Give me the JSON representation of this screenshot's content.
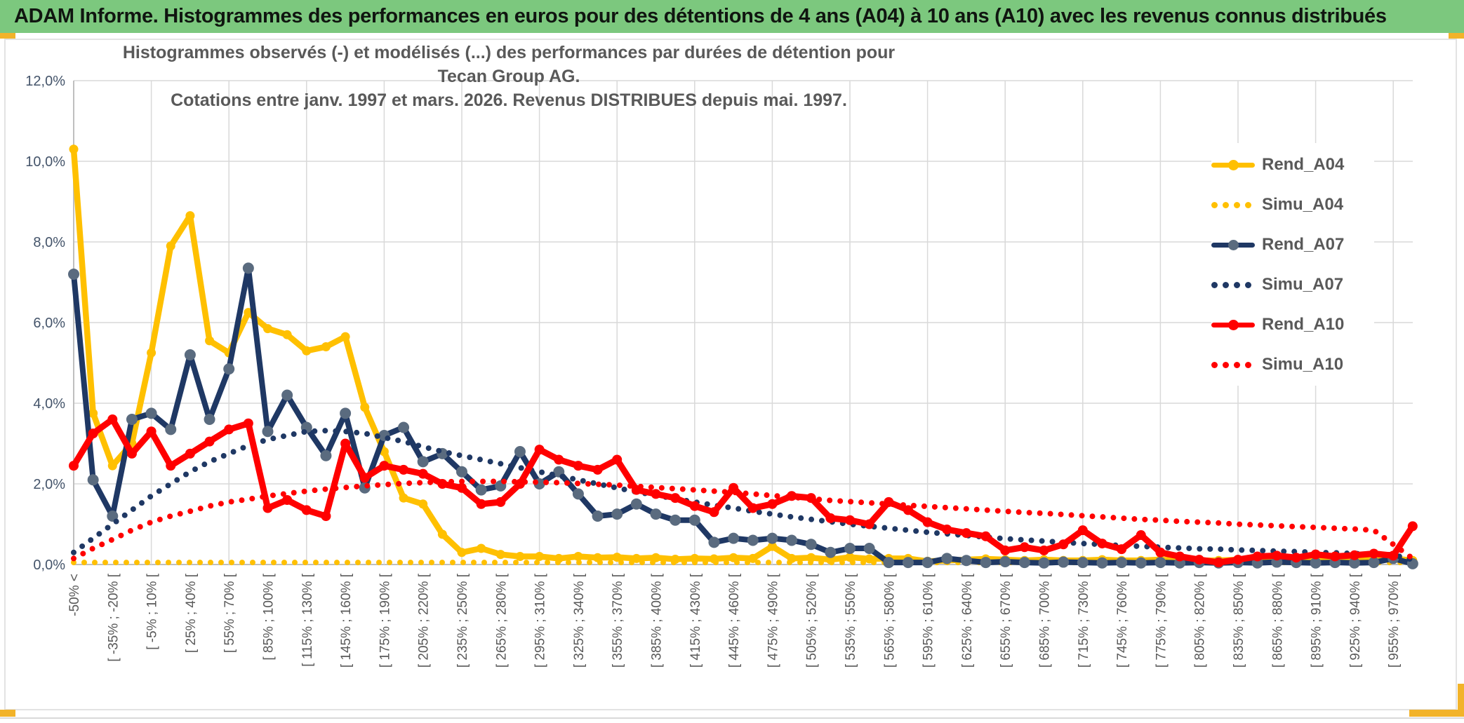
{
  "header": {
    "title": "ADAM Informe. Histogrammes des performances en euros pour des détentions de 4 ans (A04) à 10 ans (A10) avec les revenus connus distribués",
    "bg_color": "#7CC87E",
    "accent_color": "#F2B32A"
  },
  "chart_data": {
    "type": "line",
    "title_line1": "Histogrammes observés (-) et modélisés (...) des performances par durées de détention pour Tecan Group AG.",
    "title_line2": "Cotations entre janv. 1997 et mars. 2026. Revenus DISTRIBUES depuis mai. 1997.",
    "ylabel": "",
    "xlabel": "",
    "ylim": [
      0,
      12
    ],
    "grid": true,
    "legend_position": "right",
    "y_ticks": [
      "0,0%",
      "2,0%",
      "4,0%",
      "6,0%",
      "8,0%",
      "10,0%",
      "12,0%"
    ],
    "x_labels": [
      "-50% <",
      "[ -35% ; -20% [",
      "[ -5% ; 10% [",
      "[ 25% ; 40% [",
      "[ 55% ; 70% [",
      "[ 85% ; 100% [",
      "[ 115% ; 130% [",
      "[ 145% ; 160% [",
      "[ 175% ; 190% [",
      "[ 205% ; 220% [",
      "[ 235% ; 250% [",
      "[ 265% ; 280% [",
      "[ 295% ; 310% [",
      "[ 325% ; 340% [",
      "[ 355% ; 370% [",
      "[ 385% ; 400% [",
      "[ 415% ; 430% [",
      "[ 445% ; 460% [",
      "[ 475% ; 490% [",
      "[ 505% ; 520% [",
      "[ 535% ; 550% [",
      "[ 565% ; 580% [",
      "[ 595% ; 610% [",
      "[ 625% ; 640% [",
      "[ 655% ; 670% [",
      "[ 685% ; 700% [",
      "[ 715% ; 730% [",
      "[ 745% ; 760% [",
      "[ 775% ; 790% [",
      "[ 805% ; 820% [",
      "[ 835% ; 850% [",
      "[ 865% ; 880% [",
      "[ 895% ; 910% [",
      "[ 925% ; 940% [",
      "[ 955% ; 970% ["
    ],
    "x_label_every_n_points": 2,
    "n_points": 70,
    "series": [
      {
        "name": "Rend_A04",
        "style": "solid",
        "color": "#FFC000",
        "marker_color": "#FFC000",
        "marker_r": 6.5,
        "width": 8.5,
        "values": [
          10.3,
          3.75,
          2.45,
          3.0,
          5.25,
          7.9,
          8.65,
          5.55,
          5.25,
          6.25,
          5.85,
          5.7,
          5.3,
          5.4,
          5.65,
          3.9,
          2.8,
          1.65,
          1.5,
          0.75,
          0.3,
          0.4,
          0.25,
          0.2,
          0.2,
          0.15,
          0.2,
          0.17,
          0.18,
          0.15,
          0.17,
          0.13,
          0.15,
          0.14,
          0.17,
          0.15,
          0.45,
          0.15,
          0.17,
          0.12,
          0.18,
          0.14,
          0.15,
          0.15,
          0.08,
          0.1,
          0.12,
          0.14,
          0.12,
          0.1,
          0.12,
          0.1,
          0.1,
          0.12,
          0.1,
          0.1,
          0.12,
          0.1,
          0.1,
          0.1,
          0.12,
          0.1,
          0.1,
          0.12,
          0.1,
          0.1,
          0.12,
          0.12,
          0.15,
          0.1
        ]
      },
      {
        "name": "Simu_A04",
        "style": "dotted",
        "color": "#FFC000",
        "width": 8,
        "values": [
          0.05,
          0.05,
          0.05,
          0.05,
          0.05,
          0.05,
          0.05,
          0.05,
          0.05,
          0.05,
          0.05,
          0.05,
          0.05,
          0.05,
          0.05,
          0.05,
          0.05,
          0.05,
          0.05,
          0.05,
          0.05,
          0.05,
          0.05,
          0.05,
          0.05,
          0.05,
          0.05,
          0.05,
          0.05,
          0.05,
          0.05,
          0.05,
          0.05,
          0.05,
          0.05,
          0.05,
          0.05,
          0.05,
          0.05,
          0.05,
          0.05,
          0.05,
          0.05,
          0.05,
          0.05,
          0.05,
          0.05,
          0.05,
          0.05,
          0.05,
          0.05,
          0.05,
          0.05,
          0.05,
          0.05,
          0.05,
          0.05,
          0.05,
          0.05,
          0.05,
          0.05,
          0.05,
          0.05,
          0.05,
          0.05,
          0.05,
          0.05,
          0.05,
          0.05,
          0.05
        ]
      },
      {
        "name": "Rend_A07",
        "style": "solid",
        "color": "#1F3864",
        "marker_color": "#5A6B7F",
        "marker_r": 8,
        "width": 8,
        "values": [
          7.2,
          2.1,
          1.2,
          3.6,
          3.75,
          3.35,
          5.2,
          3.6,
          4.85,
          7.35,
          3.3,
          4.2,
          3.4,
          2.7,
          3.75,
          1.9,
          3.2,
          3.4,
          2.55,
          2.75,
          2.3,
          1.85,
          1.95,
          2.8,
          2.0,
          2.3,
          1.75,
          1.2,
          1.25,
          1.5,
          1.25,
          1.1,
          1.1,
          0.55,
          0.65,
          0.6,
          0.65,
          0.6,
          0.5,
          0.3,
          0.4,
          0.4,
          0.05,
          0.05,
          0.05,
          0.15,
          0.1,
          0.05,
          0.07,
          0.05,
          0.04,
          0.06,
          0.05,
          0.04,
          0.05,
          0.04,
          0.05,
          0.04,
          0.05,
          0.04,
          0.05,
          0.04,
          0.06,
          0.05,
          0.04,
          0.05,
          0.04,
          0.05,
          0.15,
          0.02
        ]
      },
      {
        "name": "Simu_A07",
        "style": "dotted",
        "color": "#1F3864",
        "width": 8,
        "values": [
          0.3,
          0.65,
          1.0,
          1.35,
          1.7,
          2.0,
          2.3,
          2.55,
          2.75,
          2.95,
          3.1,
          3.2,
          3.3,
          3.32,
          3.3,
          3.25,
          3.15,
          3.05,
          2.92,
          2.8,
          2.7,
          2.6,
          2.5,
          2.4,
          2.3,
          2.2,
          2.1,
          2.0,
          1.9,
          1.8,
          1.72,
          1.63,
          1.55,
          1.47,
          1.4,
          1.32,
          1.25,
          1.18,
          1.12,
          1.06,
          1.0,
          0.95,
          0.9,
          0.85,
          0.8,
          0.76,
          0.72,
          0.68,
          0.64,
          0.61,
          0.58,
          0.55,
          0.52,
          0.5,
          0.47,
          0.45,
          0.43,
          0.41,
          0.39,
          0.38,
          0.36,
          0.35,
          0.33,
          0.32,
          0.3,
          0.29,
          0.27,
          0.26,
          0.24,
          0.12
        ]
      },
      {
        "name": "Rend_A10",
        "style": "solid",
        "color": "#FF0000",
        "marker_color": "#FF0000",
        "marker_r": 7,
        "width": 9,
        "values": [
          2.45,
          3.25,
          3.6,
          2.75,
          3.3,
          2.45,
          2.75,
          3.05,
          3.35,
          3.5,
          1.4,
          1.6,
          1.35,
          1.2,
          3.0,
          2.15,
          2.45,
          2.35,
          2.25,
          2.0,
          1.9,
          1.5,
          1.55,
          2.0,
          2.85,
          2.6,
          2.45,
          2.35,
          2.6,
          1.85,
          1.75,
          1.65,
          1.45,
          1.3,
          1.9,
          1.4,
          1.5,
          1.7,
          1.65,
          1.15,
          1.1,
          1.0,
          1.55,
          1.35,
          1.05,
          0.87,
          0.78,
          0.7,
          0.35,
          0.43,
          0.35,
          0.5,
          0.85,
          0.52,
          0.38,
          0.73,
          0.3,
          0.2,
          0.12,
          0.05,
          0.12,
          0.2,
          0.22,
          0.17,
          0.25,
          0.2,
          0.23,
          0.27,
          0.22,
          0.95
        ]
      },
      {
        "name": "Simu_A10",
        "style": "dotted",
        "color": "#FF0000",
        "width": 8,
        "values": [
          0.15,
          0.4,
          0.62,
          0.85,
          1.05,
          1.2,
          1.32,
          1.45,
          1.55,
          1.62,
          1.7,
          1.76,
          1.82,
          1.87,
          1.91,
          1.95,
          1.98,
          2.01,
          2.03,
          2.05,
          2.06,
          2.06,
          2.06,
          2.05,
          2.04,
          2.03,
          2.01,
          1.99,
          1.97,
          1.94,
          1.91,
          1.88,
          1.85,
          1.82,
          1.79,
          1.75,
          1.71,
          1.67,
          1.63,
          1.59,
          1.56,
          1.53,
          1.5,
          1.47,
          1.44,
          1.41,
          1.38,
          1.35,
          1.32,
          1.29,
          1.27,
          1.24,
          1.21,
          1.18,
          1.15,
          1.12,
          1.1,
          1.07,
          1.05,
          1.03,
          1.0,
          0.98,
          0.96,
          0.94,
          0.92,
          0.9,
          0.88,
          0.85,
          0.5,
          0.15
        ]
      }
    ],
    "legend": [
      "Rend_A04",
      "Simu_A04",
      "Rend_A07",
      "Simu_A07",
      "Rend_A10",
      "Simu_A10"
    ],
    "colors": {
      "grid": "#D9D9D9",
      "axis": "#BFBFBF",
      "tick_text": "#595959",
      "y_tick_text": "#44546A",
      "title_text": "#595959"
    }
  }
}
